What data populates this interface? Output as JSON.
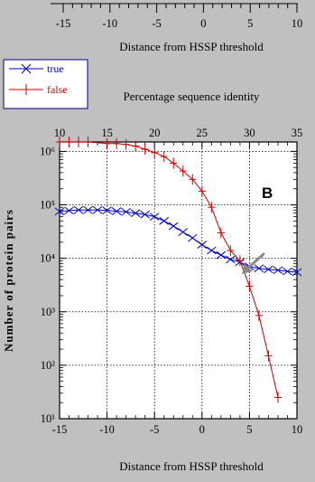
{
  "chart_data": {
    "type": "line",
    "panel_label": "B",
    "top_fragment": {
      "tick_labels": [
        "-15",
        "-10",
        "-5",
        "0",
        "5",
        "10"
      ],
      "xlabel": "Distance from HSSP threshold"
    },
    "xlabel": "Distance from HSSP threshold",
    "xlabel_top": "Percentage sequence identity",
    "ylabel": "Number of protein pairs",
    "x_ticks": [
      "-15",
      "-10",
      "-5",
      "0",
      "5",
      "10"
    ],
    "x_top_ticks": [
      "10",
      "15",
      "20",
      "25",
      "30",
      "35"
    ],
    "y_ticks": [
      "10¹",
      "10²",
      "10³",
      "10⁴",
      "10⁵",
      "10⁶"
    ],
    "xlim": [
      -15,
      10
    ],
    "ylim": [
      10,
      1500000
    ],
    "yscale": "log",
    "grid": true,
    "legend_position": "above plot, left",
    "series": [
      {
        "name": "true",
        "color": "#0000cc",
        "marker": "x",
        "points": [
          [
            -15,
            75000
          ],
          [
            -14,
            78000
          ],
          [
            -13,
            80000
          ],
          [
            -12,
            80000
          ],
          [
            -11,
            80000
          ],
          [
            -10,
            79000
          ],
          [
            -9,
            76000
          ],
          [
            -8,
            74000
          ],
          [
            -7,
            70000
          ],
          [
            -6,
            66000
          ],
          [
            -5,
            60000
          ],
          [
            -4,
            50000
          ],
          [
            -3,
            40000
          ],
          [
            -2,
            31000
          ],
          [
            -1,
            24000
          ],
          [
            0,
            18000
          ],
          [
            1,
            14000
          ],
          [
            2,
            11500
          ],
          [
            3,
            9500
          ],
          [
            4,
            8500
          ],
          [
            5,
            7000
          ],
          [
            6,
            6500
          ],
          [
            7,
            6200
          ],
          [
            8,
            6000
          ],
          [
            9,
            5700
          ],
          [
            10,
            5500
          ]
        ]
      },
      {
        "name": "false",
        "color": "#cc0000",
        "marker": "+",
        "points": [
          [
            -15,
            1500000
          ],
          [
            -14,
            1500000
          ],
          [
            -13,
            1500000
          ],
          [
            -12,
            1500000
          ],
          [
            -10,
            1400000
          ],
          [
            -9,
            1400000
          ],
          [
            -8,
            1350000
          ],
          [
            -7,
            1250000
          ],
          [
            -6,
            1100000
          ],
          [
            -5,
            950000
          ],
          [
            -4,
            800000
          ],
          [
            -3,
            600000
          ],
          [
            -2,
            430000
          ],
          [
            -1,
            300000
          ],
          [
            0,
            180000
          ],
          [
            1,
            90000
          ],
          [
            2,
            30000
          ],
          [
            3,
            14000
          ],
          [
            4,
            9000
          ],
          [
            5,
            3000
          ],
          [
            6,
            850
          ],
          [
            7,
            150
          ],
          [
            8,
            25
          ]
        ]
      }
    ]
  }
}
